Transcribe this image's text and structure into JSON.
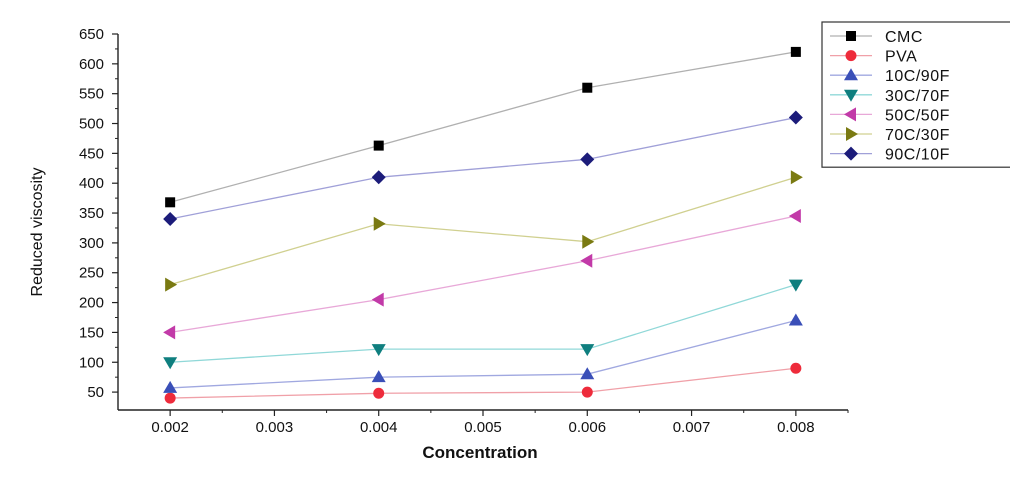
{
  "chart_data": {
    "type": "line",
    "title": "",
    "xlabel": "Concentration",
    "ylabel": "Reduced viscosity",
    "x": [
      0.002,
      0.004,
      0.006,
      0.008
    ],
    "xlim": [
      0.0015,
      0.0085
    ],
    "ylim": [
      20,
      650
    ],
    "xticks": [
      0.002,
      0.003,
      0.004,
      0.005,
      0.006,
      0.007,
      0.008
    ],
    "xtick_labels": [
      "0.002",
      "0.003",
      "0.004",
      "0.005",
      "0.006",
      "0.007",
      "0.008"
    ],
    "yticks": [
      50,
      100,
      150,
      200,
      250,
      300,
      350,
      400,
      450,
      500,
      550,
      600,
      650
    ],
    "ytick_labels": [
      "50",
      "100",
      "150",
      "200",
      "250",
      "300",
      "350",
      "400",
      "450",
      "500",
      "550",
      "600",
      "650"
    ],
    "grid": false,
    "legend_position": "top-right",
    "series": [
      {
        "name": "CMC",
        "color": "#000000",
        "line_color": "#b0b0b0",
        "marker": "square",
        "values": [
          368,
          463,
          560,
          620
        ]
      },
      {
        "name": "PVA",
        "color": "#ee2b3b",
        "line_color": "#f0a0a8",
        "marker": "circle",
        "values": [
          40,
          48,
          50,
          90
        ]
      },
      {
        "name": "10C/90F",
        "color": "#3a4fb8",
        "line_color": "#a0a8e0",
        "marker": "triangle-up",
        "values": [
          57,
          75,
          80,
          170
        ]
      },
      {
        "name": "30C/70F",
        "color": "#0f7f7f",
        "line_color": "#90d8d8",
        "marker": "triangle-down",
        "values": [
          100,
          122,
          122,
          230
        ]
      },
      {
        "name": "50C/50F",
        "color": "#c23aa8",
        "line_color": "#e8a8d8",
        "marker": "triangle-left",
        "values": [
          150,
          205,
          270,
          345
        ]
      },
      {
        "name": "70C/30F",
        "color": "#7a7a12",
        "line_color": "#d0d090",
        "marker": "triangle-right",
        "values": [
          230,
          332,
          302,
          410
        ]
      },
      {
        "name": "90C/10F",
        "color": "#1c1c7a",
        "line_color": "#a0a0d8",
        "marker": "diamond",
        "values": [
          340,
          410,
          440,
          510
        ]
      }
    ]
  }
}
